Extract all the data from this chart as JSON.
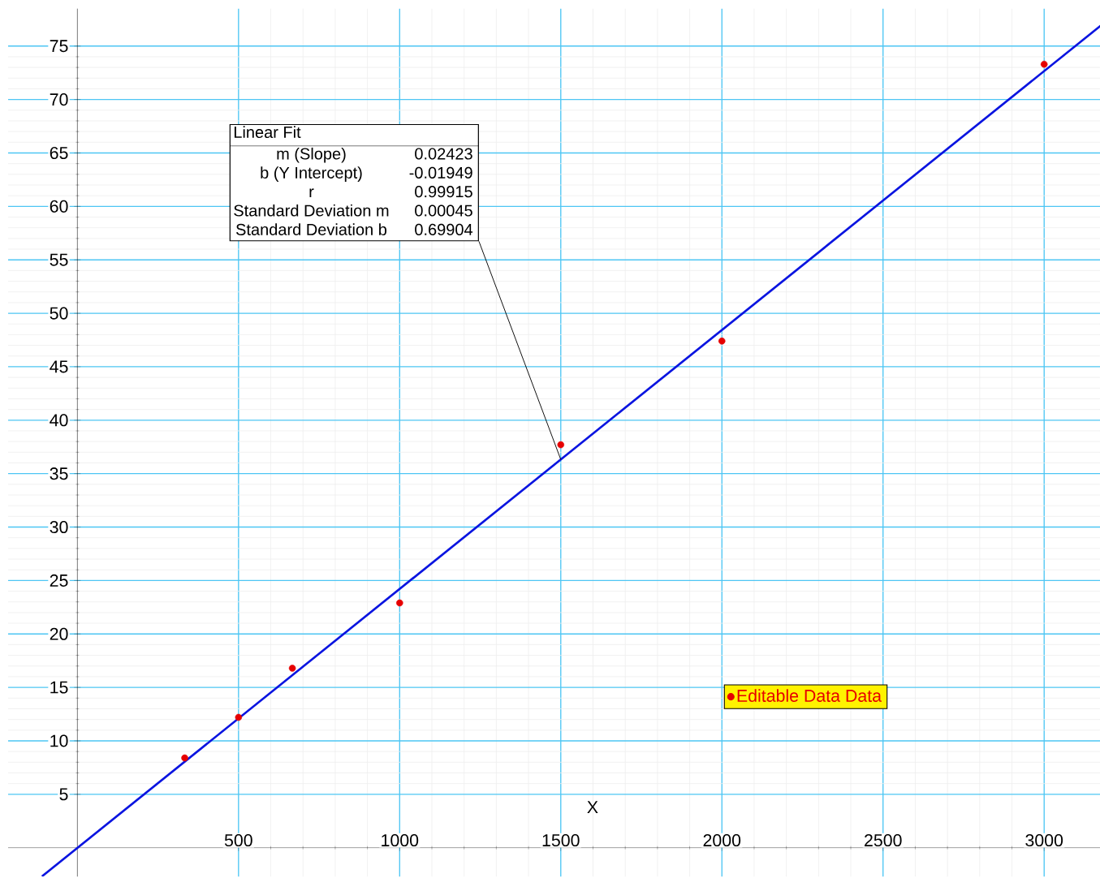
{
  "chart_data": {
    "type": "scatter",
    "xlabel": "X",
    "x": [
      333,
      500,
      667,
      1000,
      1500,
      2000,
      3000
    ],
    "series": [
      {
        "type": "line",
        "x": [
          -110,
          3175
        ],
        "values": [
          -2.68,
          76.9
        ],
        "color": "#0a14e0",
        "line_style": "solid",
        "marker": "none"
      },
      {
        "name": "Editable Data Data",
        "marker": "circle",
        "values": [
          8.4,
          12.2,
          16.8,
          22.9,
          37.7,
          47.4,
          73.3
        ],
        "color": "#e60000"
      }
    ],
    "xlim": [
      -215,
      3175
    ],
    "ylim": [
      -2.7,
      78.5
    ],
    "xticks": [
      500,
      1000,
      1500,
      2000,
      2500,
      3000
    ],
    "yticks": [
      5,
      10,
      15,
      20,
      25,
      30,
      35,
      40,
      45,
      50,
      55,
      60,
      65,
      70,
      75
    ],
    "grid": true,
    "legend": "bottom right",
    "annotations": [
      "Linear Fit",
      "m (Slope)",
      "0.02423",
      "b (Y Intercept)",
      "-0.01949",
      "r",
      "0.99915",
      "Standard Deviation  m",
      "0.00045",
      "Standard Deviation  b",
      {
        "text": "0.69904",
        "x": 1500,
        "y": 36.32
      }
    ]
  }
}
